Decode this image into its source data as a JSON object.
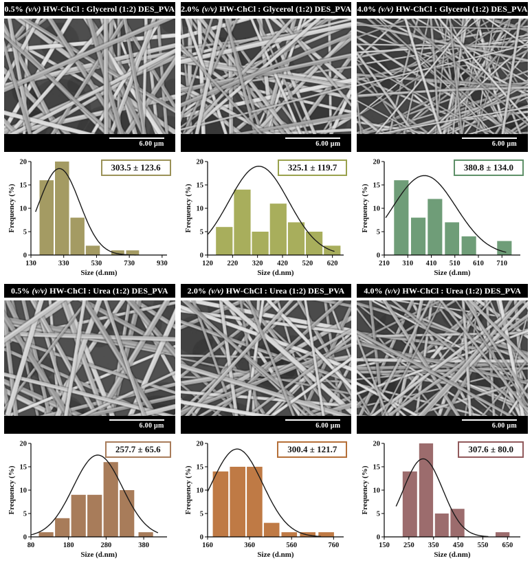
{
  "figure": {
    "scale_label": "6.00 μm"
  },
  "panels": [
    {
      "title": {
        "pre": "0.5% ",
        "vv": "(v/v)",
        "post": " HW-ChCl : Glycerol (1:2) DES_PVA"
      }
    },
    {
      "title": {
        "pre": "2.0% ",
        "vv": "(v/v)",
        "post": " HW-ChCl : Glycerol (1:2) DES_PVA"
      }
    },
    {
      "title": {
        "pre": "4.0% ",
        "vv": "(v/v)",
        "post": " HW-ChCl : Glycerol (1:2) DES_PVA"
      }
    },
    {
      "title": {
        "pre": "0.5% ",
        "vv": "(v/v)",
        "post": " HW-ChCl : Urea (1:2) DES_PVA"
      }
    },
    {
      "title": {
        "pre": "2.0% ",
        "vv": "(v/v)",
        "post": " HW-ChCl : Urea (1:2) DES_PVA"
      }
    },
    {
      "title": {
        "pre": "4.0% ",
        "vv": "(v/v)",
        "post": " HW-ChCl : Urea (1:2) DES_PVA"
      }
    }
  ],
  "chart_data": [
    {
      "type": "bar",
      "title": "0.5% (v/v) HW-ChCl : Glycerol (1:2) DES_PVA fiber size distribution",
      "xlabel": "Size (d.nm)",
      "ylabel": "Frequency (%)",
      "xlim": [
        130,
        960
      ],
      "xticks": [
        130,
        330,
        530,
        730,
        930
      ],
      "ylim": [
        0,
        20
      ],
      "yticks": [
        0,
        5,
        10,
        15,
        20
      ],
      "bars": [
        [
          180,
          271,
          16
        ],
        [
          274,
          365,
          20
        ],
        [
          368,
          459,
          8
        ],
        [
          462,
          553,
          2
        ],
        [
          618,
          702,
          1
        ],
        [
          708,
          792,
          1
        ]
      ],
      "mean_label": "303.5 ± 123.6",
      "fit_curve": {
        "mean": 303.5,
        "sd": 123.6,
        "peak": 18.5,
        "x0": 158,
        "x1": 770
      },
      "bar_color": "#a49b63",
      "box_border_color": "#9a9157",
      "legend_position": "top-right",
      "grid": false
    },
    {
      "type": "bar",
      "title": "2.0% (v/v) HW-ChCl : Glycerol (1:2) DES_PVA fiber size distribution",
      "xlabel": "Size (d.nm)",
      "ylabel": "Frequency (%)",
      "xlim": [
        120,
        665
      ],
      "xticks": [
        120,
        220,
        320,
        420,
        520,
        620
      ],
      "ylim": [
        0,
        20
      ],
      "yticks": [
        0,
        5,
        10,
        15,
        20
      ],
      "bars": [
        [
          152,
          222,
          6
        ],
        [
          224,
          294,
          14
        ],
        [
          296,
          366,
          5
        ],
        [
          368,
          438,
          11
        ],
        [
          440,
          510,
          7
        ],
        [
          512,
          582,
          5
        ],
        [
          584,
          654,
          2
        ]
      ],
      "mean_label": "325.1 ± 119.7",
      "fit_curve": {
        "mean": 325.1,
        "sd": 119.7,
        "peak": 19.0,
        "x0": 120,
        "x1": 628
      },
      "bar_color": "#a8ae5c",
      "box_border_color": "#99a14c",
      "legend_position": "top-right",
      "grid": false
    },
    {
      "type": "bar",
      "title": "4.0% (v/v) HW-ChCl : Glycerol (1:2) DES_PVA fiber size distribution",
      "xlabel": "Size (d.nm)",
      "ylabel": "Frequency (%)",
      "xlim": [
        210,
        788
      ],
      "xticks": [
        210,
        310,
        410,
        510,
        610,
        710
      ],
      "ylim": [
        0,
        20
      ],
      "yticks": [
        0,
        5,
        10,
        15,
        20
      ],
      "bars": [
        [
          250,
          315,
          16
        ],
        [
          322,
          387,
          8
        ],
        [
          393,
          458,
          12
        ],
        [
          466,
          530,
          7
        ],
        [
          537,
          602,
          4
        ],
        [
          688,
          753,
          3
        ]
      ],
      "mean_label": "380.8 ± 134.0",
      "fit_curve": {
        "mean": 380.8,
        "sd": 134.0,
        "peak": 17.0,
        "x0": 216,
        "x1": 728
      },
      "bar_color": "#6f9d78",
      "box_border_color": "#5e9068",
      "legend_position": "top-right",
      "grid": false
    },
    {
      "type": "bar",
      "title": "0.5% (v/v) HW-ChCl : Urea (1:2) DES_PVA fiber size distribution",
      "xlabel": "Size (d.nm)",
      "ylabel": "Frequency (%)",
      "xlim": [
        80,
        442
      ],
      "xticks": [
        80,
        180,
        280,
        380
      ],
      "ylim": [
        0,
        20
      ],
      "yticks": [
        0,
        5,
        10,
        15,
        20
      ],
      "bars": [
        [
          100,
          141,
          1
        ],
        [
          143,
          184,
          4
        ],
        [
          186,
          227,
          9
        ],
        [
          229,
          270,
          9
        ],
        [
          272,
          313,
          16
        ],
        [
          315,
          356,
          10
        ],
        [
          365,
          406,
          1
        ]
      ],
      "mean_label": "257.7 ± 65.6",
      "fit_curve": {
        "mean": 257.7,
        "sd": 65.6,
        "peak": 17.5,
        "x0": 80,
        "x1": 418
      },
      "bar_color": "#a87c5a",
      "box_border_color": "#a87c5a",
      "legend_position": "top-right",
      "grid": false
    },
    {
      "type": "bar",
      "title": "2.0% (v/v) HW-ChCl : Urea (1:2) DES_PVA fiber size distribution",
      "xlabel": "Size (d.nm)",
      "ylabel": "Frequency (%)",
      "xlim": [
        160,
        808
      ],
      "xticks": [
        160,
        360,
        560,
        760
      ],
      "ylim": [
        0,
        20
      ],
      "yticks": [
        0,
        5,
        10,
        15,
        20
      ],
      "bars": [
        [
          183,
          261,
          14
        ],
        [
          264,
          342,
          15
        ],
        [
          345,
          423,
          15
        ],
        [
          426,
          504,
          3
        ],
        [
          510,
          588,
          1
        ],
        [
          598,
          676,
          1
        ],
        [
          686,
          764,
          1
        ]
      ],
      "mean_label": "300.4 ± 121.7",
      "fit_curve": {
        "mean": 300.4,
        "sd": 121.7,
        "peak": 18.8,
        "x0": 160,
        "x1": 700
      },
      "bar_color": "#bf7a45",
      "box_border_color": "#b56f38",
      "legend_position": "top-right",
      "grid": false
    },
    {
      "type": "bar",
      "title": "4.0% (v/v) HW-ChCl : Urea (1:2) DES_PVA fiber size distribution",
      "xlabel": "Size (d.nm)",
      "ylabel": "Frequency (%)",
      "xlim": [
        150,
        702
      ],
      "xticks": [
        150,
        250,
        350,
        450,
        550,
        650
      ],
      "ylim": [
        0,
        20
      ],
      "yticks": [
        0,
        5,
        10,
        15,
        20
      ],
      "bars": [
        [
          223,
          285,
          14
        ],
        [
          290,
          350,
          20
        ],
        [
          354,
          413,
          5
        ],
        [
          417,
          477,
          6
        ],
        [
          600,
          660,
          1
        ]
      ],
      "mean_label": "307.6 ± 80.0",
      "fit_curve": {
        "mean": 307.6,
        "sd": 80.0,
        "peak": 16.7,
        "x0": 198,
        "x1": 572
      },
      "bar_color": "#9c6c6d",
      "box_border_color": "#91595b",
      "legend_position": "top-right",
      "grid": false
    }
  ]
}
